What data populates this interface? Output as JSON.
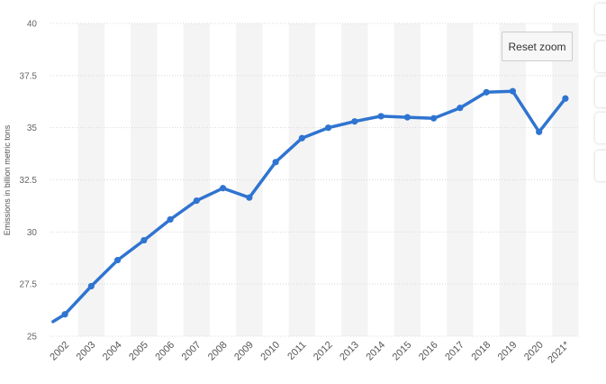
{
  "chart_data": {
    "type": "line",
    "categories": [
      "2002",
      "2003",
      "2004",
      "2005",
      "2006",
      "2007",
      "2008",
      "2009",
      "2010",
      "2011",
      "2012",
      "2013",
      "2014",
      "2015",
      "2016",
      "2017",
      "2018",
      "2019",
      "2020",
      "2021*"
    ],
    "x": [
      2001.55,
      2002,
      2003,
      2004,
      2005,
      2006,
      2007,
      2008,
      2009,
      2010,
      2011,
      2012,
      2013,
      2014,
      2015,
      2016,
      2017,
      2018,
      2019,
      2020,
      2021
    ],
    "series": [
      {
        "values": [
          25.7,
          26.05,
          27.4,
          28.65,
          29.6,
          30.6,
          31.5,
          32.1,
          31.65,
          33.35,
          34.5,
          35.0,
          35.3,
          35.55,
          35.5,
          35.45,
          35.95,
          36.7,
          36.75,
          34.8,
          36.4
        ],
        "color": "#2f74d0"
      }
    ],
    "ylabel": "Emissions in billion metric tons",
    "ylim": [
      25,
      40
    ],
    "yticks": [
      "25",
      "27.5",
      "30",
      "32.5",
      "35",
      "37.5",
      "40"
    ],
    "grid": true
  },
  "reset_zoom": {
    "label": "Reset zoom"
  },
  "colors": {
    "line": "#2f74d0",
    "band": "#f4f4f4",
    "grid": "#d8d8d8"
  }
}
